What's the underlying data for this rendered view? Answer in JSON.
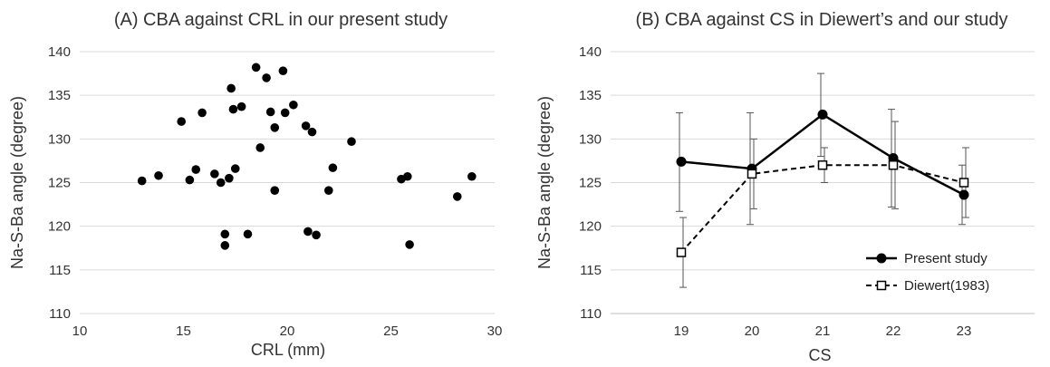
{
  "chart_data": [
    {
      "type": "scatter",
      "title": "(A) CBA against CRL in our present study",
      "xlabel": "CRL (mm)",
      "ylabel": "Na-S-Ba angle (degree)",
      "xlim": [
        10,
        30
      ],
      "ylim": [
        110,
        140
      ],
      "xticks": [
        "10",
        "15",
        "20",
        "25",
        "30"
      ],
      "yticks": [
        "110",
        "115",
        "120",
        "125",
        "130",
        "135",
        "140"
      ],
      "grid": "horizontal",
      "points": [
        {
          "x": 13.0,
          "y": 125.2
        },
        {
          "x": 13.8,
          "y": 125.8
        },
        {
          "x": 14.9,
          "y": 132.0
        },
        {
          "x": 15.3,
          "y": 125.3
        },
        {
          "x": 15.6,
          "y": 126.5
        },
        {
          "x": 15.9,
          "y": 133.0
        },
        {
          "x": 16.5,
          "y": 126.0
        },
        {
          "x": 16.8,
          "y": 125.0
        },
        {
          "x": 17.0,
          "y": 119.1
        },
        {
          "x": 17.0,
          "y": 117.8
        },
        {
          "x": 17.2,
          "y": 125.5
        },
        {
          "x": 17.3,
          "y": 135.8
        },
        {
          "x": 17.4,
          "y": 133.4
        },
        {
          "x": 17.5,
          "y": 126.6
        },
        {
          "x": 17.8,
          "y": 133.7
        },
        {
          "x": 18.1,
          "y": 119.1
        },
        {
          "x": 18.5,
          "y": 138.2
        },
        {
          "x": 18.7,
          "y": 129.0
        },
        {
          "x": 19.0,
          "y": 137.0
        },
        {
          "x": 19.2,
          "y": 133.1
        },
        {
          "x": 19.4,
          "y": 131.3
        },
        {
          "x": 19.4,
          "y": 124.1
        },
        {
          "x": 19.8,
          "y": 137.8
        },
        {
          "x": 19.9,
          "y": 133.0
        },
        {
          "x": 20.3,
          "y": 133.9
        },
        {
          "x": 20.9,
          "y": 131.5
        },
        {
          "x": 21.0,
          "y": 119.4
        },
        {
          "x": 21.2,
          "y": 130.8
        },
        {
          "x": 21.4,
          "y": 119.0
        },
        {
          "x": 22.0,
          "y": 124.1
        },
        {
          "x": 22.2,
          "y": 126.7
        },
        {
          "x": 23.1,
          "y": 129.7
        },
        {
          "x": 25.5,
          "y": 125.4
        },
        {
          "x": 25.8,
          "y": 125.7
        },
        {
          "x": 25.9,
          "y": 117.9
        },
        {
          "x": 28.2,
          "y": 123.4
        },
        {
          "x": 28.9,
          "y": 125.7
        }
      ]
    },
    {
      "type": "line",
      "title": "(B) CBA against CS in Diewert’s and our study",
      "xlabel": "CS",
      "ylabel": "Na-S-Ba angle (degree)",
      "categories": [
        "19",
        "20",
        "21",
        "22",
        "23"
      ],
      "ylim": [
        110,
        140
      ],
      "yticks": [
        "110",
        "115",
        "120",
        "125",
        "130",
        "135",
        "140"
      ],
      "grid": "horizontal",
      "legend_position": "bottom-right",
      "series": [
        {
          "name": "Present study",
          "values": [
            127.4,
            126.6,
            132.8,
            127.8,
            123.6
          ],
          "error_low": [
            121.7,
            120.2,
            128.0,
            122.2,
            120.2
          ],
          "error_high": [
            133.0,
            133.0,
            137.5,
            133.4,
            127.0
          ],
          "style": "solid",
          "marker": "filled-circle",
          "color": "#000000"
        },
        {
          "name": "Diewert(1983)",
          "values": [
            117.0,
            126.0,
            127.0,
            127.0,
            125.0
          ],
          "error_low": [
            113.0,
            122.0,
            125.0,
            122.0,
            121.0
          ],
          "error_high": [
            121.0,
            130.0,
            129.0,
            132.0,
            129.0
          ],
          "style": "dashed",
          "marker": "open-square",
          "color": "#000000"
        }
      ]
    }
  ]
}
